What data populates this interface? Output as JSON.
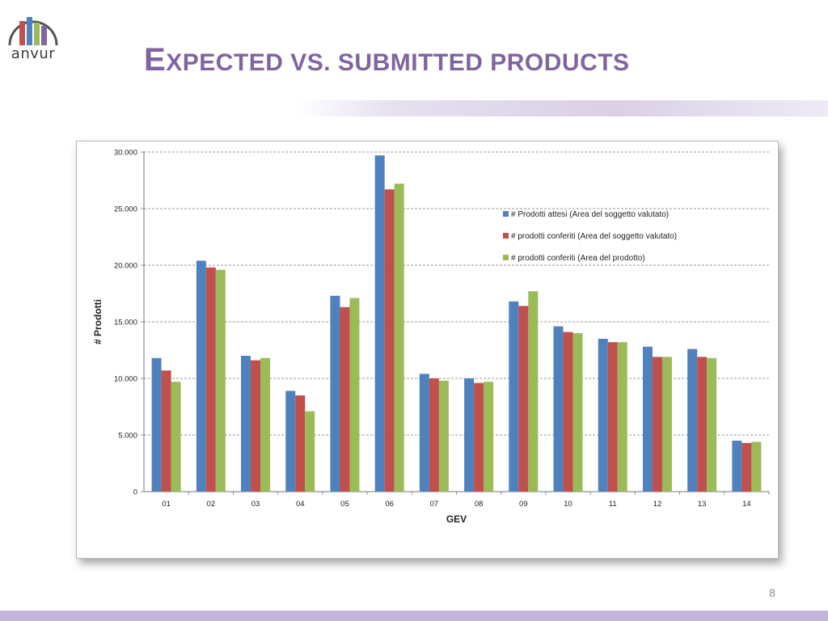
{
  "slide": {
    "logo_text": "anvur",
    "title_first": "E",
    "title_rest": "XPECTED VS. SUBMITTED PRODUCTS",
    "page_number": "8"
  },
  "colors": {
    "title": "#8064a2",
    "series": [
      "#4f81bd",
      "#c0504d",
      "#9bbb59"
    ],
    "logo": [
      "#c0504d",
      "#4f81bd",
      "#9bbb59",
      "#8064a2"
    ]
  },
  "chart_data": {
    "type": "bar",
    "title": "",
    "xlabel": "GEV",
    "ylabel": "# Prodotti",
    "ylim": [
      0,
      30000
    ],
    "y_ticks": [
      "0",
      "5.000",
      "10.000",
      "15.000",
      "20.000",
      "25.000",
      "30.000"
    ],
    "categories": [
      "01",
      "02",
      "03",
      "04",
      "05",
      "06",
      "07",
      "08",
      "09",
      "10",
      "11",
      "12",
      "13",
      "14"
    ],
    "legend_position": "upper-right",
    "grid": true,
    "series": [
      {
        "name": "# Prodotti attesi (Area del soggetto valutato)",
        "values": [
          11800,
          20400,
          12000,
          8900,
          17300,
          29700,
          10400,
          10000,
          16800,
          14600,
          13500,
          12800,
          12600,
          4500
        ]
      },
      {
        "name": "# prodotti conferiti (Area del soggetto valutato)",
        "values": [
          10700,
          19800,
          11600,
          8500,
          16300,
          26700,
          10000,
          9600,
          16400,
          14100,
          13200,
          11900,
          11900,
          4300
        ]
      },
      {
        "name": "# prodotti conferiti (Area del prodotto)",
        "values": [
          9700,
          19600,
          11800,
          7100,
          17100,
          27200,
          9800,
          9700,
          17700,
          14000,
          13200,
          11900,
          11800,
          4400
        ]
      }
    ]
  }
}
